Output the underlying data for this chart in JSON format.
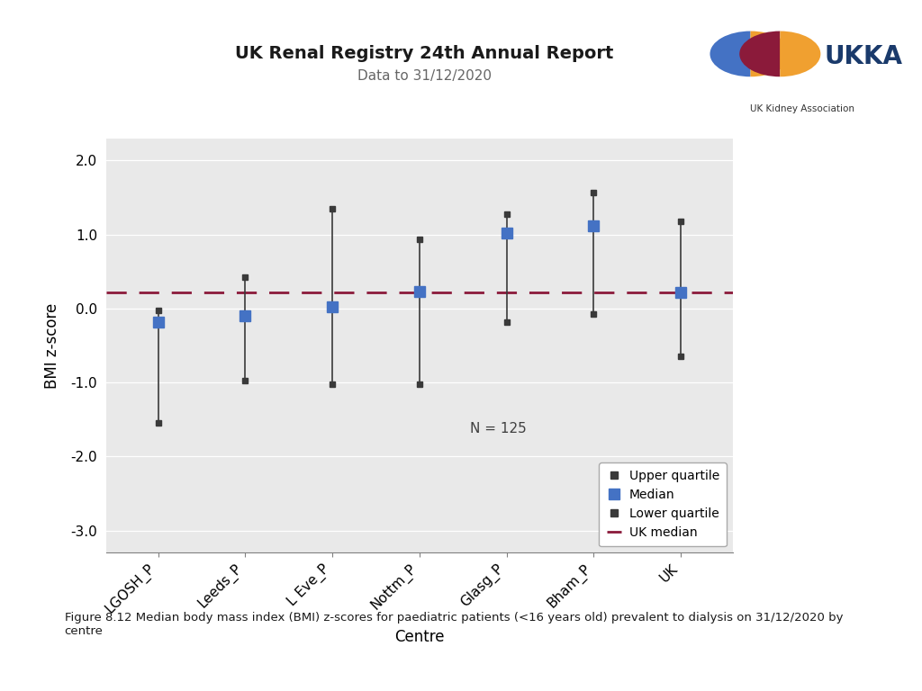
{
  "title": "UK Renal Registry 24th Annual Report",
  "subtitle": "Data to 31/12/2020",
  "xlabel": "Centre",
  "ylabel": "BMI z-score",
  "ylim": [
    -3.3,
    2.3
  ],
  "yticks": [
    -3.0,
    -2.0,
    -1.0,
    0.0,
    1.0,
    2.0
  ],
  "uk_median": 0.22,
  "n_label": "N = 125",
  "categories": [
    "LGOSH_P",
    "Leeds_P",
    "L Eve_P",
    "Nottm_P",
    "Glasg_P",
    "Bham_P",
    "UK"
  ],
  "medians": [
    -0.18,
    -0.1,
    0.02,
    0.23,
    1.02,
    1.12,
    0.22
  ],
  "upper_quartiles": [
    -0.02,
    0.42,
    1.35,
    0.93,
    1.27,
    1.56,
    1.18
  ],
  "lower_quartiles": [
    -1.55,
    -0.97,
    -1.02,
    -1.02,
    -0.18,
    -0.08,
    -0.65
  ],
  "median_color": "#4472C4",
  "line_color": "#3A3A3A",
  "uk_median_color": "#8B1A3A",
  "background_color": "#E9E9E9",
  "figure_background": "#FFFFFF",
  "caption": "Figure 8.12 Median body mass index (BMI) z-scores for paediatric patients (<16 years old) prevalent to dialysis on 31/12/2020 by\ncentre"
}
